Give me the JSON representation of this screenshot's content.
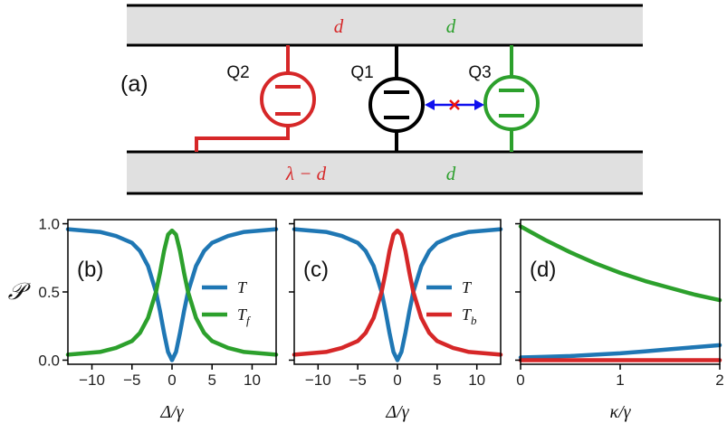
{
  "colors": {
    "red": "#d62728",
    "green": "#2ca02c",
    "blue": "#1f77b4",
    "black": "#000000",
    "arrow": "#1010ee",
    "cross": "#ee1111",
    "waveguide": "#e0e0e0"
  },
  "schematic": {
    "panel_label": "(a)",
    "qubits": [
      "Q2",
      "Q1",
      "Q3"
    ],
    "top_labels": [
      "d",
      "d"
    ],
    "bottom_labels": [
      "λ − d",
      "d"
    ]
  },
  "chart_data": [
    {
      "type": "line",
      "panel": "(b)",
      "ylabel": "𝒫",
      "xlabel": "Δ/γ",
      "xlim": [
        -13,
        13
      ],
      "ylim": [
        -0.03,
        1.03
      ],
      "xticks": [
        "−10",
        "−5",
        "0",
        "5",
        "10"
      ],
      "yticks": [
        "0.0",
        "0.5",
        "1.0"
      ],
      "legend": [
        "T",
        "T_f"
      ],
      "legend_placement": "center-right",
      "series": [
        {
          "name": "T",
          "color": "#1f77b4",
          "x": [
            -13,
            -11,
            -9,
            -7,
            -5,
            -4,
            -3,
            -2,
            -1.5,
            -1,
            -0.5,
            0,
            0.5,
            1,
            1.5,
            2,
            3,
            4,
            5,
            7,
            9,
            11,
            13
          ],
          "values": [
            0.96,
            0.95,
            0.94,
            0.91,
            0.86,
            0.8,
            0.69,
            0.5,
            0.36,
            0.2,
            0.06,
            0.0,
            0.06,
            0.2,
            0.36,
            0.5,
            0.69,
            0.8,
            0.86,
            0.91,
            0.94,
            0.95,
            0.96
          ]
        },
        {
          "name": "T_f",
          "color": "#2ca02c",
          "x": [
            -13,
            -11,
            -9,
            -7,
            -5,
            -4,
            -3,
            -2,
            -1.5,
            -1,
            -0.5,
            0,
            0.5,
            1,
            1.5,
            2,
            3,
            4,
            5,
            7,
            9,
            11,
            13
          ],
          "values": [
            0.04,
            0.05,
            0.06,
            0.09,
            0.14,
            0.2,
            0.31,
            0.5,
            0.64,
            0.8,
            0.92,
            0.95,
            0.92,
            0.8,
            0.64,
            0.5,
            0.31,
            0.2,
            0.14,
            0.09,
            0.06,
            0.05,
            0.04
          ]
        }
      ]
    },
    {
      "type": "line",
      "panel": "(c)",
      "xlabel": "Δ/γ",
      "xlim": [
        -13,
        13
      ],
      "ylim": [
        -0.03,
        1.03
      ],
      "xticks": [
        "−10",
        "−5",
        "0",
        "5",
        "10"
      ],
      "legend": [
        "T",
        "T_b"
      ],
      "legend_placement": "center-right",
      "series": [
        {
          "name": "T",
          "color": "#1f77b4",
          "x": [
            -13,
            -11,
            -9,
            -7,
            -5,
            -4,
            -3,
            -2,
            -1.5,
            -1,
            -0.5,
            0,
            0.5,
            1,
            1.5,
            2,
            3,
            4,
            5,
            7,
            9,
            11,
            13
          ],
          "values": [
            0.96,
            0.95,
            0.94,
            0.91,
            0.86,
            0.8,
            0.69,
            0.5,
            0.36,
            0.2,
            0.06,
            0.0,
            0.06,
            0.2,
            0.36,
            0.5,
            0.69,
            0.8,
            0.86,
            0.91,
            0.94,
            0.95,
            0.96
          ]
        },
        {
          "name": "T_b",
          "color": "#d62728",
          "x": [
            -13,
            -11,
            -9,
            -7,
            -5,
            -4,
            -3,
            -2,
            -1.5,
            -1,
            -0.5,
            0,
            0.5,
            1,
            1.5,
            2,
            3,
            4,
            5,
            7,
            9,
            11,
            13
          ],
          "values": [
            0.04,
            0.05,
            0.06,
            0.09,
            0.14,
            0.2,
            0.31,
            0.5,
            0.64,
            0.8,
            0.92,
            0.95,
            0.92,
            0.8,
            0.64,
            0.5,
            0.31,
            0.2,
            0.14,
            0.09,
            0.06,
            0.05,
            0.04
          ]
        }
      ]
    },
    {
      "type": "line",
      "panel": "(d)",
      "xlabel": "κ/γ",
      "xlim": [
        0,
        2
      ],
      "ylim": [
        -0.03,
        1.03
      ],
      "xticks": [
        "0",
        "1",
        "2"
      ],
      "series": [
        {
          "color": "#2ca02c",
          "x": [
            0,
            0.25,
            0.5,
            0.75,
            1,
            1.25,
            1.5,
            1.75,
            2
          ],
          "values": [
            0.98,
            0.88,
            0.79,
            0.71,
            0.64,
            0.58,
            0.53,
            0.48,
            0.44
          ]
        },
        {
          "color": "#1f77b4",
          "x": [
            0,
            0.25,
            0.5,
            0.75,
            1,
            1.25,
            1.5,
            1.75,
            2
          ],
          "values": [
            0.02,
            0.025,
            0.03,
            0.04,
            0.05,
            0.065,
            0.08,
            0.095,
            0.11
          ]
        },
        {
          "color": "#d62728",
          "x": [
            0,
            0.5,
            1,
            1.5,
            2
          ],
          "values": [
            0.0,
            0.0,
            0.0,
            0.0,
            0.0
          ]
        }
      ]
    }
  ]
}
